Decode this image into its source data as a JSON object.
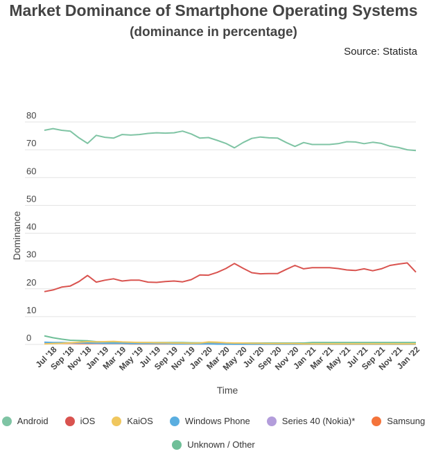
{
  "chart_data": {
    "type": "line",
    "title": "Market Dominance of Smartphone Operating Systems",
    "subtitle": "(dominance in percentage)",
    "source": "Source: Statista",
    "xlabel": "Time",
    "ylabel": "Dominance",
    "ylim": [
      0,
      80
    ],
    "yticks": [
      0,
      10,
      20,
      30,
      40,
      50,
      60,
      70,
      80
    ],
    "x": [
      "Jun '18",
      "Jul '18",
      "Aug '18",
      "Sep '18",
      "Oct '18",
      "Nov '18",
      "Dec '18",
      "Jan '19",
      "Feb '19",
      "Mar '19",
      "Apr '19",
      "May '19",
      "Jun '19",
      "Jul '19",
      "Aug '19",
      "Sep '19",
      "Oct '19",
      "Nov '19",
      "Dec '19",
      "Jan '20",
      "Feb '20",
      "Mar '20",
      "Apr '20",
      "May '20",
      "Jun '20",
      "Jul '20",
      "Aug '20",
      "Sep '20",
      "Oct '20",
      "Nov '20",
      "Dec '20",
      "Jan '21",
      "Feb '21",
      "Mar '21",
      "Apr '21",
      "May '21",
      "Jun '21",
      "Jul '21",
      "Aug '21",
      "Sep '21",
      "Oct '21",
      "Nov '21",
      "Dec '21",
      "Jan '22"
    ],
    "xticklabels": [
      "Jul '18",
      "Sep '18",
      "Nov '18",
      "Jan '19",
      "Mar '19",
      "May '19",
      "Jul '19",
      "Sep '19",
      "Nov '19",
      "Jan '20",
      "Mar '20",
      "May '20",
      "Jul '20",
      "Sep '20",
      "Nov '20",
      "Jan '21",
      "Mar '21",
      "May '21",
      "Jul '21",
      "Sep '21",
      "Nov '21",
      "Jan '22"
    ],
    "series": [
      {
        "name": "Android",
        "color": "#7fc4a4",
        "values": [
          77.0,
          77.6,
          77.0,
          76.7,
          74.3,
          72.3,
          75.2,
          74.5,
          74.2,
          75.5,
          75.3,
          75.5,
          75.9,
          76.1,
          76.0,
          76.1,
          76.7,
          75.7,
          74.2,
          74.4,
          73.4,
          72.3,
          70.7,
          72.6,
          74.1,
          74.6,
          74.3,
          74.2,
          72.6,
          71.2,
          72.6,
          71.9,
          71.9,
          71.9,
          72.2,
          72.9,
          72.8,
          72.2,
          72.7,
          72.3,
          71.3,
          70.8,
          70.0,
          69.7
        ]
      },
      {
        "name": "iOS",
        "color": "#d9534f",
        "values": [
          19.0,
          19.6,
          20.6,
          21.0,
          22.6,
          24.8,
          22.4,
          23.1,
          23.6,
          22.8,
          23.1,
          23.1,
          22.4,
          22.3,
          22.6,
          22.8,
          22.5,
          23.3,
          25.0,
          24.9,
          25.9,
          27.3,
          29.1,
          27.4,
          25.8,
          25.4,
          25.5,
          25.5,
          27.0,
          28.4,
          27.2,
          27.6,
          27.6,
          27.6,
          27.3,
          26.8,
          26.6,
          27.2,
          26.5,
          27.2,
          28.4,
          28.9,
          29.3,
          26.0
        ]
      },
      {
        "name": "KaiOS",
        "color": "#f0c75e",
        "values": [
          0.2,
          0.3,
          0.4,
          0.6,
          0.8,
          1.0,
          0.9,
          1.0,
          1.1,
          0.9,
          0.8,
          0.7,
          0.7,
          0.6,
          0.6,
          0.5,
          0.5,
          0.4,
          0.5,
          0.9,
          0.8,
          0.6,
          0.5,
          0.5,
          0.4,
          0.4,
          0.3,
          0.3,
          0.3,
          0.3,
          0.2,
          0.2,
          0.2,
          0.2,
          0.2,
          0.2,
          0.2,
          0.2,
          0.2,
          0.2,
          0.2,
          0.2,
          0.2,
          0.2
        ]
      },
      {
        "name": "Windows Phone",
        "color": "#5aaee0",
        "values": [
          0.8,
          0.7,
          0.7,
          0.6,
          0.6,
          0.5,
          0.5,
          0.4,
          0.4,
          0.4,
          0.3,
          0.3,
          0.3,
          0.3,
          0.3,
          0.2,
          0.2,
          0.2,
          0.2,
          0.2,
          0.1,
          0.1,
          0.1,
          0.1,
          0.1,
          0.1,
          0.1,
          0.1,
          0.1,
          0.1,
          0.1,
          0.1,
          0.1,
          0.1,
          0.1,
          0.1,
          0.1,
          0.1,
          0.1,
          0.1,
          0.1,
          0.1,
          0.1,
          0.1
        ]
      },
      {
        "name": "Series 40 (Nokia)*",
        "color": "#b39ddb",
        "values": [
          0.6,
          0.6,
          0.6,
          0.5,
          0.5,
          0.5,
          0.4,
          0.4,
          0.4,
          0.4,
          0.3,
          0.3,
          0.3,
          0.3,
          0.3,
          0.2,
          0.2,
          0.2,
          0.2,
          0.2,
          0.2,
          0.2,
          0.1,
          0.1,
          0.1,
          0.1,
          0.1,
          0.1,
          0.1,
          0.1,
          0.1,
          0.1,
          0.1,
          0.1,
          0.1,
          0.1,
          0.1,
          0.1,
          0.1,
          0.1,
          0.1,
          0.1,
          0.1,
          0.1
        ]
      },
      {
        "name": "Samsung",
        "color": "#f4743b",
        "values": [
          0.4,
          0.4,
          0.4,
          0.4,
          0.3,
          0.3,
          0.3,
          0.3,
          0.3,
          0.3,
          0.2,
          0.2,
          0.2,
          0.2,
          0.2,
          0.2,
          0.2,
          0.2,
          0.2,
          0.2,
          0.2,
          0.1,
          0.1,
          0.1,
          0.1,
          0.1,
          0.1,
          0.1,
          0.1,
          0.1,
          0.1,
          0.1,
          0.1,
          0.1,
          0.1,
          0.1,
          0.1,
          0.1,
          0.1,
          0.1,
          0.1,
          0.1,
          0.1,
          0.1
        ]
      },
      {
        "name": "Unknown / Other",
        "color": "#6fbf98",
        "values": [
          3.1,
          2.4,
          1.9,
          1.5,
          1.4,
          1.3,
          1.0,
          0.9,
          0.8,
          0.8,
          0.7,
          0.7,
          0.7,
          0.7,
          0.7,
          0.7,
          0.7,
          0.6,
          0.6,
          0.6,
          0.5,
          0.5,
          0.5,
          0.5,
          0.5,
          0.5,
          0.5,
          0.5,
          0.5,
          0.5,
          0.5,
          0.7,
          0.7,
          0.7,
          0.7,
          0.7,
          0.7,
          0.7,
          0.7,
          0.7,
          0.7,
          0.7,
          0.7,
          0.7
        ]
      }
    ],
    "legend_position": "bottom"
  }
}
